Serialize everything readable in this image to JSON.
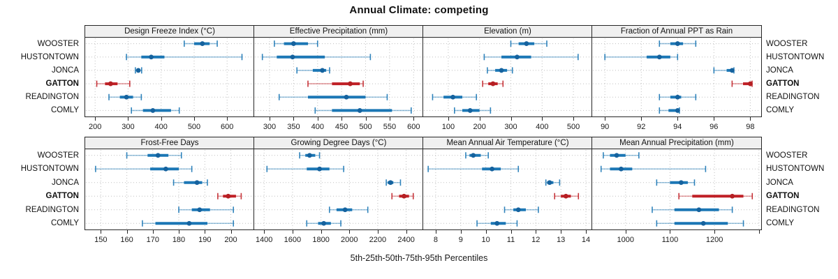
{
  "title": "Annual Climate: competing",
  "caption": "5th-25th-50th-75th-95th Percentiles",
  "highlight_location": "GATTON",
  "colors": {
    "blue": "#1b77b5",
    "blue_dot": "#15629e",
    "red": "#c02026",
    "red_dot": "#b51f23",
    "header_bg": "#f0f0f0",
    "panel_border": "#262626",
    "grid": "#bfbfbf",
    "text": "#111111"
  },
  "chart_data": {
    "type": "dotplot-percentiles-trellis",
    "percentile_labels": [
      "5th",
      "25th",
      "50th",
      "75th",
      "95th"
    ],
    "rows": [
      "WOOSTER",
      "HUSTONTOWN",
      "JONCA",
      "GATTON",
      "READINGTON",
      "COMLY"
    ],
    "highlight_row": "GATTON",
    "legend_note": "5th-25th-50th-75th-95th Percentiles",
    "panels": [
      {
        "title": "Design Freeze Index (°C)",
        "grid_row": 0,
        "grid_col": 0,
        "axis": {
          "range": [
            170,
            682
          ],
          "ticks": [
            200,
            300,
            400,
            500,
            600
          ],
          "tick_labels": [
            "200",
            "300",
            "400",
            "500",
            "600"
          ]
        },
        "values": [
          [
            470,
            500,
            525,
            547,
            570
          ],
          [
            295,
            340,
            370,
            410,
            645
          ],
          [
            322,
            327,
            331,
            336,
            341
          ],
          [
            205,
            230,
            247,
            268,
            305
          ],
          [
            242,
            275,
            295,
            315,
            340
          ],
          [
            310,
            345,
            375,
            430,
            455
          ]
        ]
      },
      {
        "title": "Effective Precipitation (mm)",
        "grid_row": 0,
        "grid_col": 1,
        "axis": {
          "range": [
            268,
            620
          ],
          "ticks": [
            300,
            350,
            400,
            450,
            500,
            550,
            600
          ],
          "tick_labels": [
            "300",
            "350",
            "400",
            "450",
            "500",
            "550",
            "600"
          ]
        },
        "values": [
          [
            310,
            330,
            350,
            380,
            400
          ],
          [
            285,
            315,
            348,
            415,
            510
          ],
          [
            357,
            390,
            410,
            418,
            425
          ],
          [
            380,
            430,
            468,
            488,
            495
          ],
          [
            320,
            380,
            460,
            500,
            545
          ],
          [
            395,
            430,
            488,
            555,
            595
          ]
        ]
      },
      {
        "title": "Elevation (m)",
        "grid_row": 0,
        "grid_col": 2,
        "axis": {
          "range": [
            20,
            560
          ],
          "ticks": [
            100,
            200,
            300,
            400,
            500
          ],
          "tick_labels": [
            "100",
            "200",
            "300",
            "400",
            "500"
          ]
        },
        "values": [
          [
            300,
            325,
            350,
            375,
            415
          ],
          [
            215,
            270,
            320,
            365,
            515
          ],
          [
            225,
            250,
            270,
            288,
            305
          ],
          [
            210,
            228,
            243,
            258,
            275
          ],
          [
            50,
            85,
            115,
            145,
            190
          ],
          [
            120,
            145,
            170,
            200,
            235
          ]
        ]
      },
      {
        "title": "Fraction of Annual PPT as Rain",
        "grid_row": 0,
        "grid_col": 3,
        "axis": {
          "range": [
            89.3,
            98.6
          ],
          "ticks": [
            90,
            92,
            94,
            96,
            98
          ],
          "tick_labels": [
            "90",
            "92",
            "94",
            "96",
            "98"
          ]
        },
        "values": [
          [
            93,
            93.6,
            94,
            94.3,
            95
          ],
          [
            90,
            92.3,
            93,
            93.6,
            94
          ],
          [
            96,
            96.7,
            97,
            97.05,
            97.1
          ],
          [
            97,
            97.6,
            98,
            98.05,
            98.1
          ],
          [
            93,
            93.6,
            94,
            94.2,
            95
          ],
          [
            93,
            93.5,
            94,
            94.05,
            94.1
          ]
        ]
      },
      {
        "title": "Frost-Free Days",
        "grid_row": 1,
        "grid_col": 0,
        "axis": {
          "range": [
            144,
            209
          ],
          "ticks": [
            150,
            160,
            170,
            180,
            190,
            200
          ],
          "tick_labels": [
            "150",
            "160",
            "170",
            "180",
            "190",
            "200"
          ]
        },
        "values": [
          [
            160,
            168,
            172,
            176,
            181
          ],
          [
            148,
            169,
            175,
            180,
            185
          ],
          [
            178,
            182,
            187,
            189,
            191
          ],
          [
            195,
            197,
            199,
            202,
            204
          ],
          [
            180,
            185,
            188,
            192,
            201
          ],
          [
            166,
            171,
            184,
            191,
            201
          ]
        ]
      },
      {
        "title": "Growing Degree Days (°C)",
        "grid_row": 1,
        "grid_col": 1,
        "axis": {
          "range": [
            1330,
            2520
          ],
          "ticks": [
            1400,
            1600,
            1800,
            2000,
            2200,
            2400
          ],
          "tick_labels": [
            "1400",
            "1600",
            "1800",
            "2000",
            "2200",
            "2400"
          ]
        },
        "values": [
          [
            1650,
            1690,
            1720,
            1760,
            1790
          ],
          [
            1420,
            1700,
            1790,
            1860,
            1960
          ],
          [
            2260,
            2270,
            2290,
            2310,
            2360
          ],
          [
            2300,
            2350,
            2385,
            2420,
            2450
          ],
          [
            1860,
            1910,
            1970,
            2020,
            2130
          ],
          [
            1700,
            1780,
            1820,
            1870,
            1940
          ]
        ]
      },
      {
        "title": "Mean Annual Air Temperature (°C)",
        "grid_row": 1,
        "grid_col": 2,
        "axis": {
          "range": [
            7.5,
            14.25
          ],
          "ticks": [
            8,
            9,
            10,
            11,
            12,
            13,
            14
          ],
          "tick_labels": [
            "8",
            "9",
            "10",
            "11",
            "12",
            "13",
            "14"
          ]
        },
        "values": [
          [
            9.2,
            9.35,
            9.5,
            9.8,
            10.1
          ],
          [
            7.7,
            9.85,
            10.25,
            10.6,
            11.3
          ],
          [
            12.4,
            12.45,
            12.55,
            12.7,
            12.95
          ],
          [
            12.75,
            13.0,
            13.2,
            13.4,
            13.7
          ],
          [
            10.75,
            11.1,
            11.3,
            11.6,
            12.1
          ],
          [
            9.65,
            10.2,
            10.45,
            10.8,
            11.25
          ]
        ]
      },
      {
        "title": "Mean Annual Precipitation (mm)",
        "grid_row": 1,
        "grid_col": 3,
        "axis": {
          "range": [
            925,
            1305
          ],
          "ticks": [
            1000,
            1100,
            1200,
            1300
          ],
          "tick_labels": [
            "1000",
            "1100",
            "1200",
            ""
          ]
        },
        "values": [
          [
            950,
            965,
            980,
            1000,
            1030
          ],
          [
            945,
            965,
            990,
            1015,
            1180
          ],
          [
            1070,
            1100,
            1125,
            1140,
            1155
          ],
          [
            1120,
            1150,
            1240,
            1265,
            1285
          ],
          [
            1060,
            1110,
            1165,
            1210,
            1240
          ],
          [
            1070,
            1110,
            1175,
            1230,
            1265
          ]
        ]
      }
    ]
  }
}
